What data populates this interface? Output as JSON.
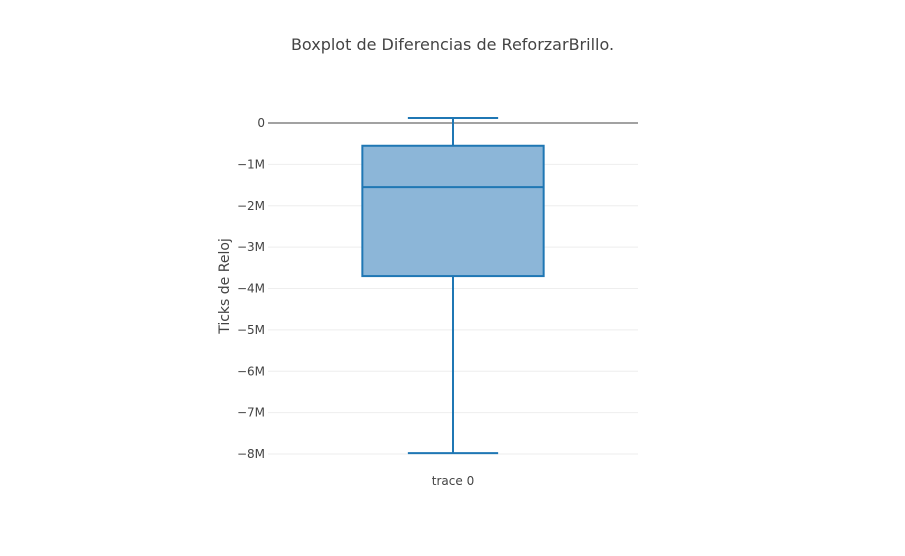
{
  "chart_data": {
    "type": "box",
    "title": "Boxplot de Diferencias de ReforzarBrillo.",
    "ylabel": "Ticks de Reloj",
    "ylim": [
      -8200000,
      300000
    ],
    "yticks": [
      0,
      -1000000,
      -2000000,
      -3000000,
      -4000000,
      -5000000,
      -6000000,
      -7000000,
      -8000000
    ],
    "ytick_labels": [
      "0",
      "−1M",
      "−2M",
      "−3M",
      "−4M",
      "−5M",
      "−6M",
      "−7M",
      "−8M"
    ],
    "grid": true,
    "zeroline": true,
    "series": [
      {
        "name": "trace 0",
        "category": "trace 0",
        "upper_whisker": 120000,
        "q3": -550000,
        "median": -1550000,
        "q1": -3700000,
        "lower_whisker": -7980000,
        "fill_color": "#8cb6d8",
        "line_color": "#1f77b4"
      }
    ]
  }
}
